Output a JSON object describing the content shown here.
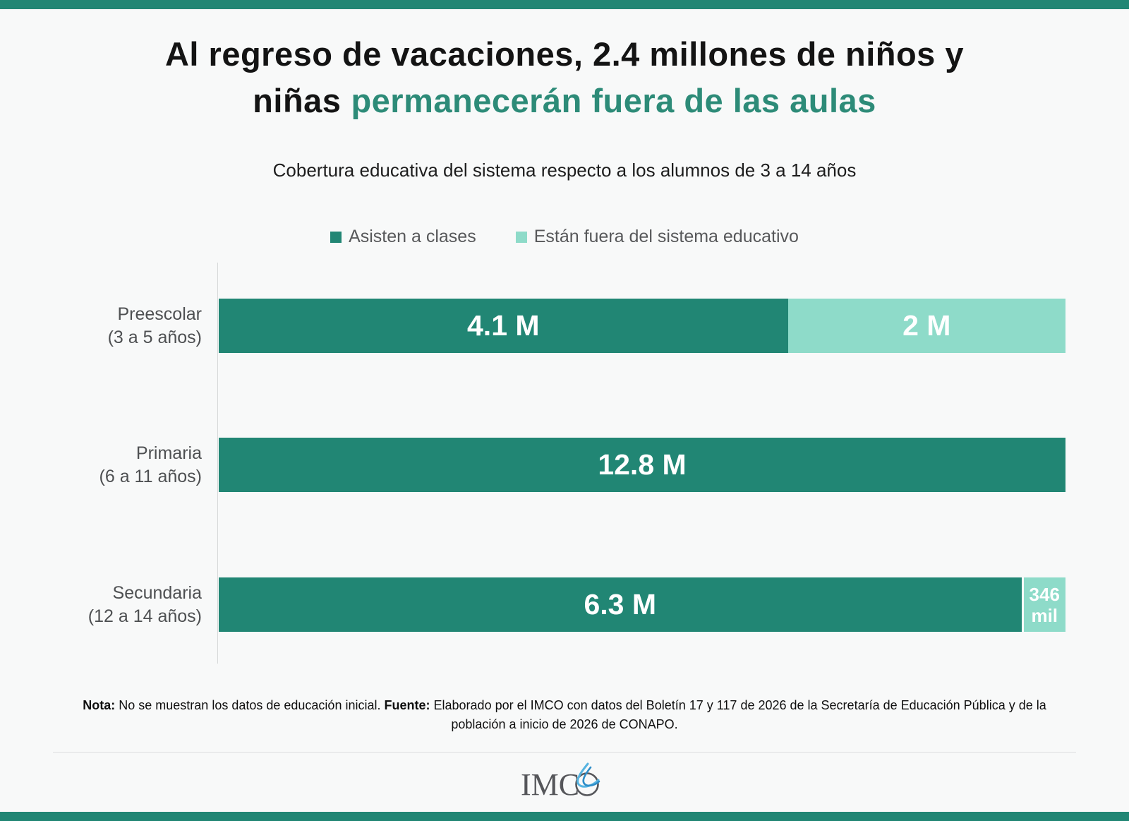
{
  "page": {
    "background": "#f8f9f9",
    "accent_color": "#218674",
    "title_accent_color": "#2d8b78"
  },
  "title": {
    "line1": "Al regreso de vacaciones, 2.4 millones de niños y",
    "line2_black": "niñas",
    "line2_accent": "permanecerán fuera de las aulas"
  },
  "subtitle": "Cobertura educativa del sistema respecto a los alumnos de 3 a 14 años",
  "legend": [
    {
      "label": "Asisten a clases",
      "color": "#218674"
    },
    {
      "label": "Están fuera del sistema educativo",
      "color": "#8edbc9"
    }
  ],
  "chart_data": {
    "type": "bar",
    "orientation": "horizontal",
    "stacked": "100%",
    "units": "students (millions)",
    "series_names": [
      "Asisten a clases",
      "Están fuera del sistema educativo"
    ],
    "colors": {
      "in_school": "#218674",
      "out_of_school": "#8edbc9"
    },
    "rows": [
      {
        "category_line1": "Preescolar",
        "category_line2": "(3 a 5 años)",
        "in_school_millions": 4.1,
        "out_of_school_millions": 2.0,
        "in_school_label": "4.1 M",
        "out_of_school_label": "2 M"
      },
      {
        "category_line1": "Primaria",
        "category_line2": "(6 a 11 años)",
        "in_school_millions": 12.8,
        "out_of_school_millions": 0,
        "in_school_label": "12.8 M",
        "out_of_school_label": ""
      },
      {
        "category_line1": "Secundaria",
        "category_line2": "(12 a 14 años)",
        "in_school_millions": 6.3,
        "out_of_school_millions": 0.346,
        "in_school_label": "6.3 M",
        "out_of_school_label": "346 mil"
      }
    ]
  },
  "note": {
    "nota_label": "Nota:",
    "nota_text": "No se muestran los datos de educación inicial.",
    "fuente_label": "Fuente:",
    "fuente_text": "Elaborado por el IMCO con datos del Boletín 17 y 117 de 2026 de la Secretaría de Educación Pública y de la población a inicio de 2026 de CONAPO."
  },
  "footer": {
    "logo_text_prefix": "IMC",
    "logo_name": "IMCO"
  }
}
